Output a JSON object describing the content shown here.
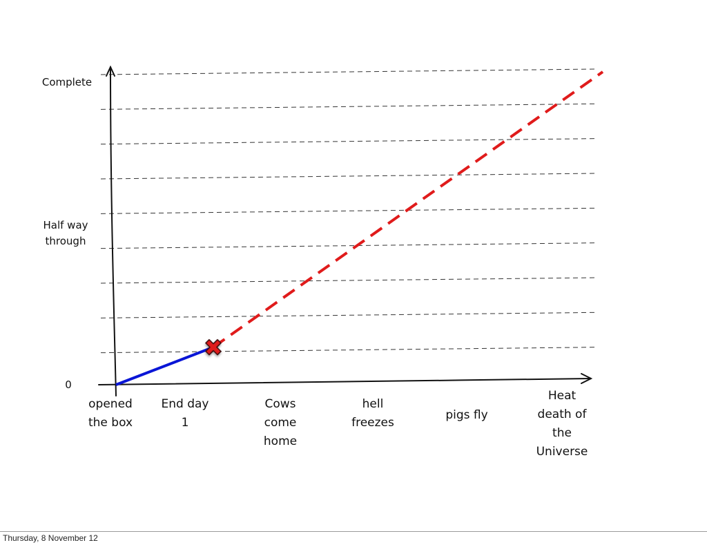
{
  "chart_data": {
    "type": "line",
    "ylabels": [
      {
        "text": "Complete",
        "value": 1
      },
      {
        "text": [
          "Half way",
          "through"
        ],
        "value": 0.5
      },
      {
        "text": "0",
        "value": 0
      }
    ],
    "categories": [
      [
        "opened",
        "the box"
      ],
      [
        "End day",
        "1"
      ],
      [
        "Cows",
        "come",
        "home"
      ],
      [
        "hell",
        "freezes"
      ],
      [
        "pigs fly"
      ],
      [
        "Heat",
        "death of",
        "the",
        "Universe"
      ]
    ],
    "ylim": [
      0,
      1
    ],
    "grid": true,
    "series": [
      {
        "style": "solid",
        "color": "#0a16d6",
        "points": [
          [
            0,
            0
          ],
          [
            1,
            0.12
          ]
        ]
      },
      {
        "style": "dashed",
        "color": "#e01b1b",
        "points": [
          [
            1,
            0.12
          ],
          [
            5,
            1
          ]
        ]
      }
    ],
    "marker": {
      "shape": "cross",
      "color": "#e01b1b",
      "point": [
        1,
        0.12
      ]
    }
  },
  "footer": {
    "date": "Thursday, 8 November 12"
  }
}
